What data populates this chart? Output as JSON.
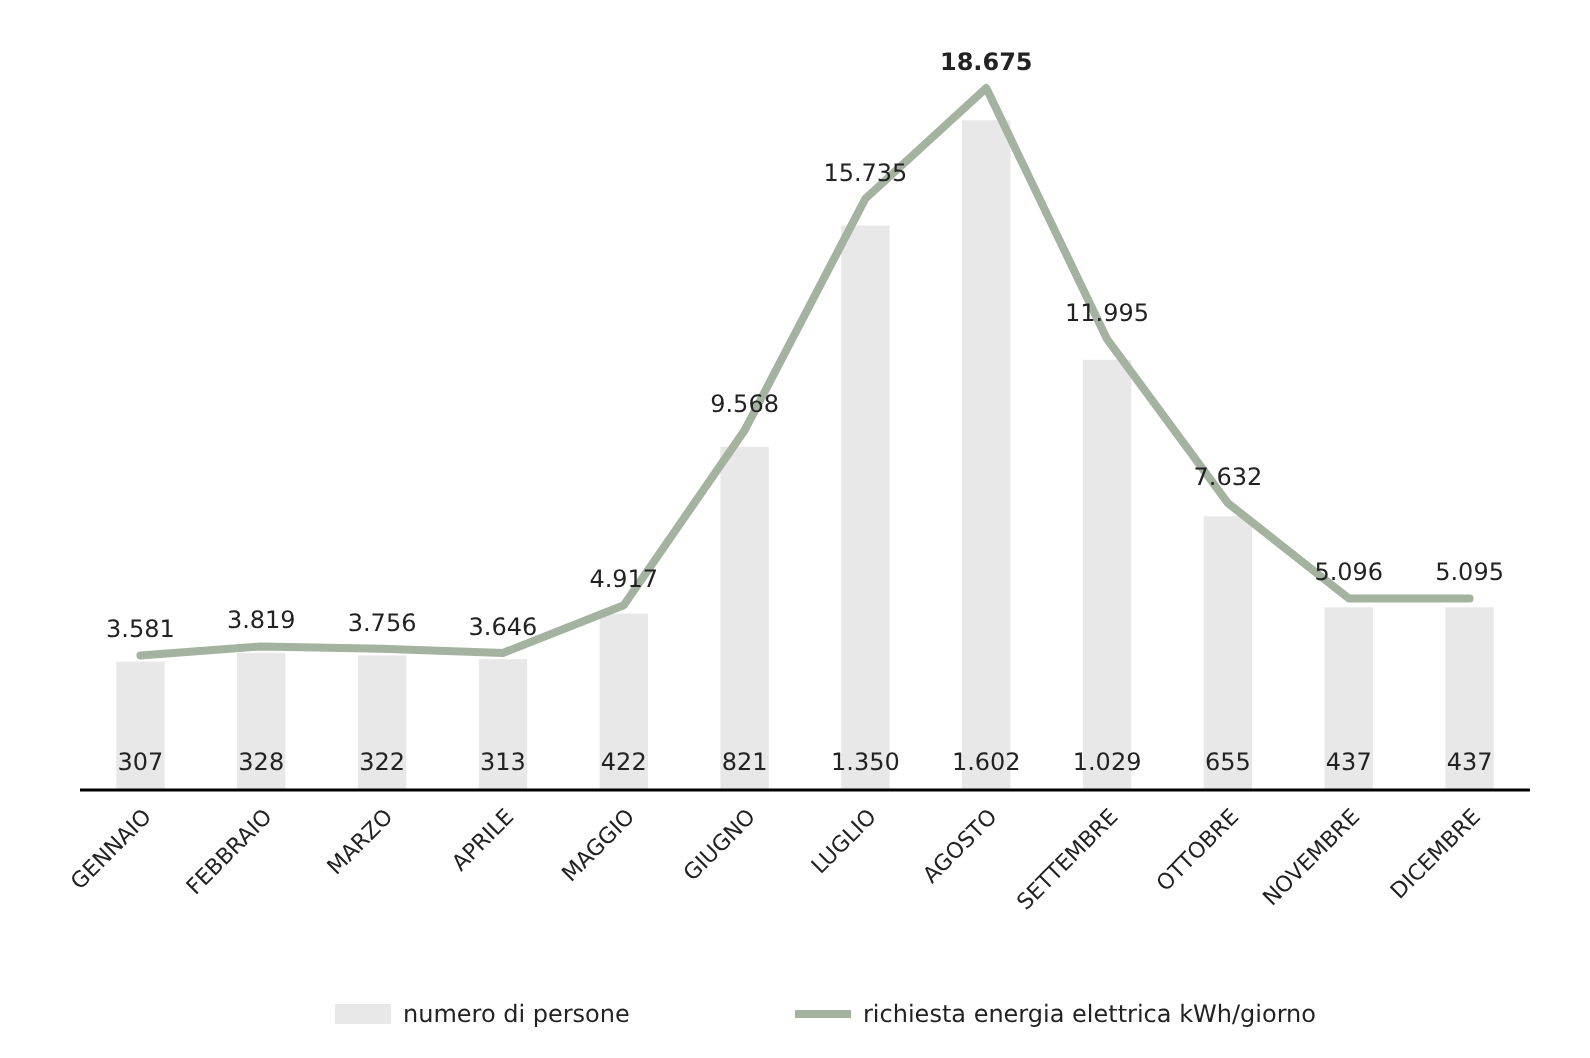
{
  "chart_data": {
    "type": "bar",
    "categories": [
      "GENNAIO",
      "FEBBRAIO",
      "MARZO",
      "APRILE",
      "MAGGIO",
      "GIUGNO",
      "LUGLIO",
      "AGOSTO",
      "SETTEMBRE",
      "OTTOBRE",
      "NOVEMBRE",
      "DICEMBRE"
    ],
    "series": [
      {
        "name": "numero di persone",
        "color": "#e8e8e8",
        "values": [
          307,
          328,
          322,
          313,
          422,
          821,
          1350,
          1602,
          1029,
          655,
          437,
          437
        ],
        "value_labels": [
          "307",
          "328",
          "322",
          "313",
          "422",
          "821",
          "1.350",
          "1.602",
          "1.029",
          "655",
          "437",
          "437"
        ]
      },
      {
        "name": "richiesta energia elettrica kWh/giorno",
        "type": "line",
        "axis": "y2",
        "color": "#a3b3a0",
        "values": [
          3581,
          3819,
          3756,
          3646,
          4917,
          9568,
          15735,
          18675,
          11995,
          7632,
          5096,
          5095
        ],
        "value_labels": [
          "3.581",
          "3.819",
          "3.756",
          "3.646",
          "4.917",
          "9.568",
          "15.735",
          "18.675",
          "11.995",
          "7.632",
          "5.096",
          "5.095"
        ]
      }
    ],
    "tick_labels": "x",
    "legend": "bottom",
    "marker": "none",
    "line_style": "solid"
  }
}
